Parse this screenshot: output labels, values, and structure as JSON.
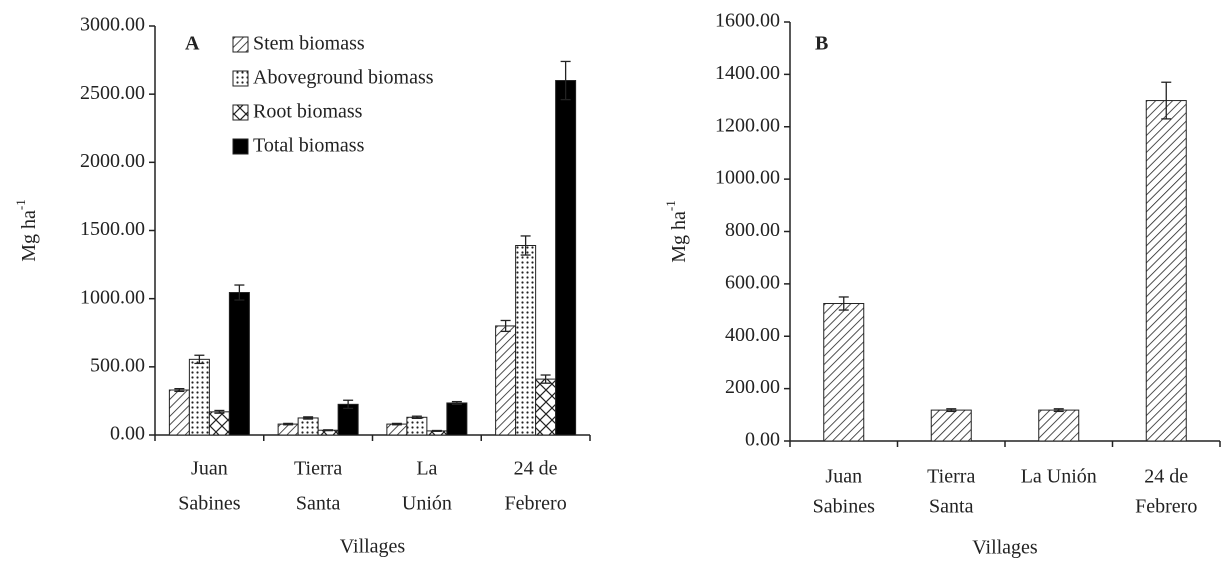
{
  "chart_data": [
    {
      "type": "bar",
      "panel_label": "A",
      "categories": [
        [
          "Juan",
          "Sabines"
        ],
        [
          "Tierra",
          "Santa"
        ],
        [
          "La",
          "Unión"
        ],
        [
          "24 de",
          "Febrero"
        ]
      ],
      "xlabel": "Villages",
      "ylabel": {
        "text": "Mg ha",
        "sup": "-1"
      },
      "ylim": [
        0,
        3000
      ],
      "yticks": [
        {
          "value": 0,
          "label": "0.00"
        },
        {
          "value": 500,
          "label": "500.00"
        },
        {
          "value": 1000,
          "label": "1000.00"
        },
        {
          "value": 1500,
          "label": "1500.00"
        },
        {
          "value": 2000,
          "label": "2000.00"
        },
        {
          "value": 2500,
          "label": "2500.00"
        },
        {
          "value": 3000,
          "label": "3000.00"
        }
      ],
      "legend": "top-left",
      "series": [
        {
          "name": "Stem biomass",
          "pattern": "hatch",
          "color": "#222222",
          "values": [
            330,
            80,
            80,
            800
          ],
          "errors": [
            10,
            5,
            5,
            40
          ]
        },
        {
          "name": "Aboveground biomass",
          "pattern": "dots",
          "color": "#222222",
          "values": [
            555,
            125,
            130,
            1390
          ],
          "errors": [
            30,
            8,
            8,
            70
          ]
        },
        {
          "name": "Root biomass",
          "pattern": "cross",
          "color": "#222222",
          "values": [
            170,
            35,
            30,
            410
          ],
          "errors": [
            10,
            3,
            3,
            30
          ]
        },
        {
          "name": "Total biomass",
          "pattern": "solid",
          "color": "#000000",
          "values": [
            1045,
            225,
            235,
            2600
          ],
          "errors": [
            55,
            30,
            10,
            140
          ]
        }
      ]
    },
    {
      "type": "bar",
      "panel_label": "B",
      "categories": [
        [
          "Juan",
          "Sabines"
        ],
        [
          "Tierra",
          "Santa"
        ],
        [
          "La Unión"
        ],
        [
          "24 de",
          "Febrero"
        ]
      ],
      "xlabel": "Villages",
      "ylabel": {
        "text": "Mg ha",
        "sup": "-1"
      },
      "ylim": [
        0,
        1600
      ],
      "yticks": [
        {
          "value": 0,
          "label": "0.00"
        },
        {
          "value": 200,
          "label": "200.00"
        },
        {
          "value": 400,
          "label": "400.00"
        },
        {
          "value": 600,
          "label": "600.00"
        },
        {
          "value": 800,
          "label": "800.00"
        },
        {
          "value": 1000,
          "label": "1000.00"
        },
        {
          "value": 1200,
          "label": "1200.00"
        },
        {
          "value": 1400,
          "label": "1400.00"
        },
        {
          "value": 1600,
          "label": "1600.00"
        }
      ],
      "series": [
        {
          "pattern": "hatch",
          "color": "#222222",
          "values": [
            525,
            118,
            118,
            1300
          ],
          "errors": [
            25,
            5,
            5,
            70
          ]
        }
      ]
    }
  ]
}
